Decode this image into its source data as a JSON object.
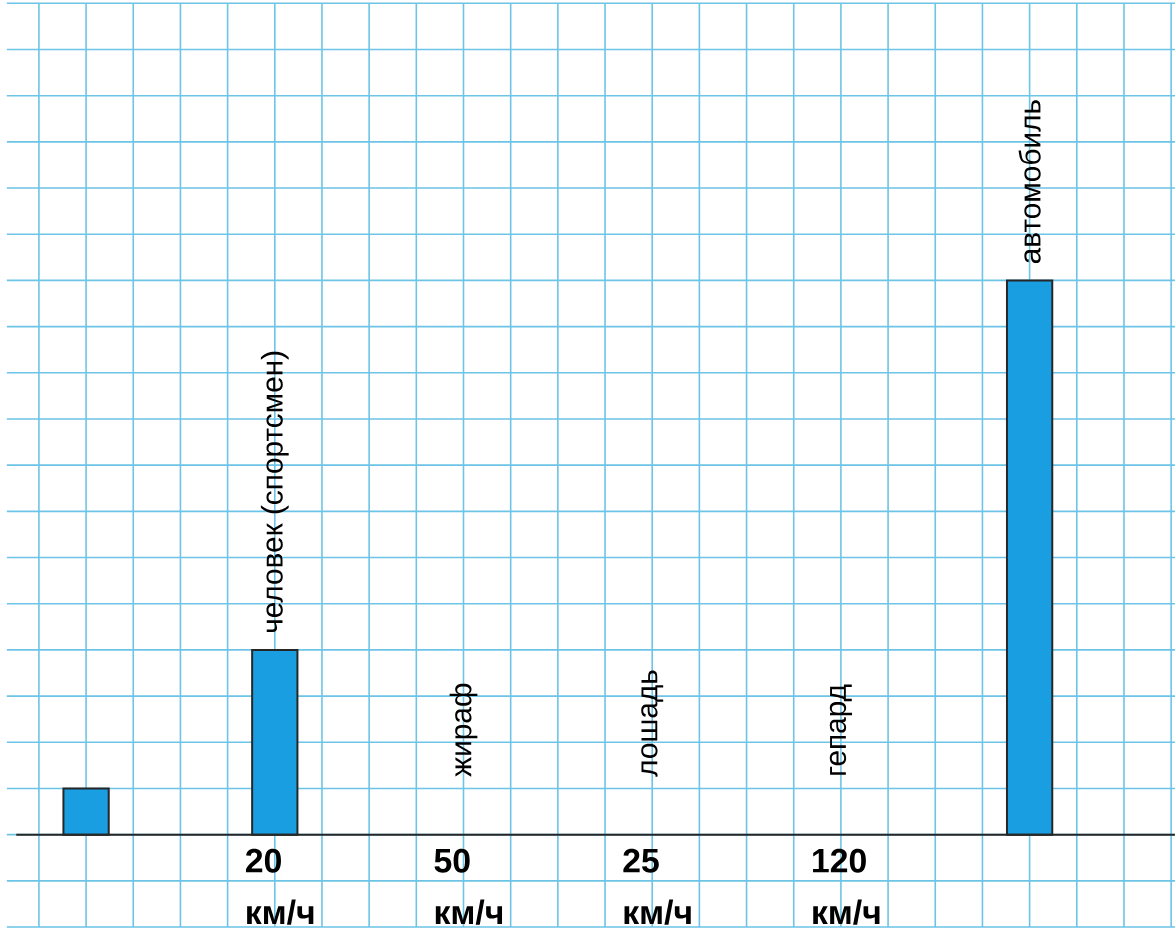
{
  "chart_data": {
    "type": "bar",
    "grid": true,
    "color": "#1a9ee2",
    "categories": [
      null,
      "человек (спортсмен)",
      "жираф",
      "лошадь",
      "гепард",
      "автомобиль"
    ],
    "values": [
      5,
      20,
      null,
      null,
      null,
      60
    ],
    "value_labels": [
      null,
      "20 км/ч",
      "50 км/ч",
      "25 км/ч",
      "120 км/ч",
      null
    ],
    "ylim": [
      -10,
      90
    ],
    "yticks": [
      {
        "value": -10,
        "label": null
      },
      {
        "value": -5,
        "label": null
      },
      {
        "value": 0,
        "label": null
      },
      {
        "value": 5,
        "label": null
      },
      {
        "value": 10,
        "label": null
      },
      {
        "value": 15,
        "label": null
      },
      {
        "value": 20,
        "label": null
      },
      {
        "value": 25,
        "label": null
      },
      {
        "value": 30,
        "label": null
      },
      {
        "value": 35,
        "label": null
      },
      {
        "value": 40,
        "label": null
      },
      {
        "value": 45,
        "label": null
      },
      {
        "value": 50,
        "label": null
      },
      {
        "value": 55,
        "label": null
      },
      {
        "value": 60,
        "label": null
      },
      {
        "value": 65,
        "label": null
      },
      {
        "value": 70,
        "label": null
      },
      {
        "value": 75,
        "label": null
      },
      {
        "value": 80,
        "label": null
      },
      {
        "value": 85,
        "label": null
      },
      {
        "value": 90,
        "label": null
      }
    ]
  }
}
